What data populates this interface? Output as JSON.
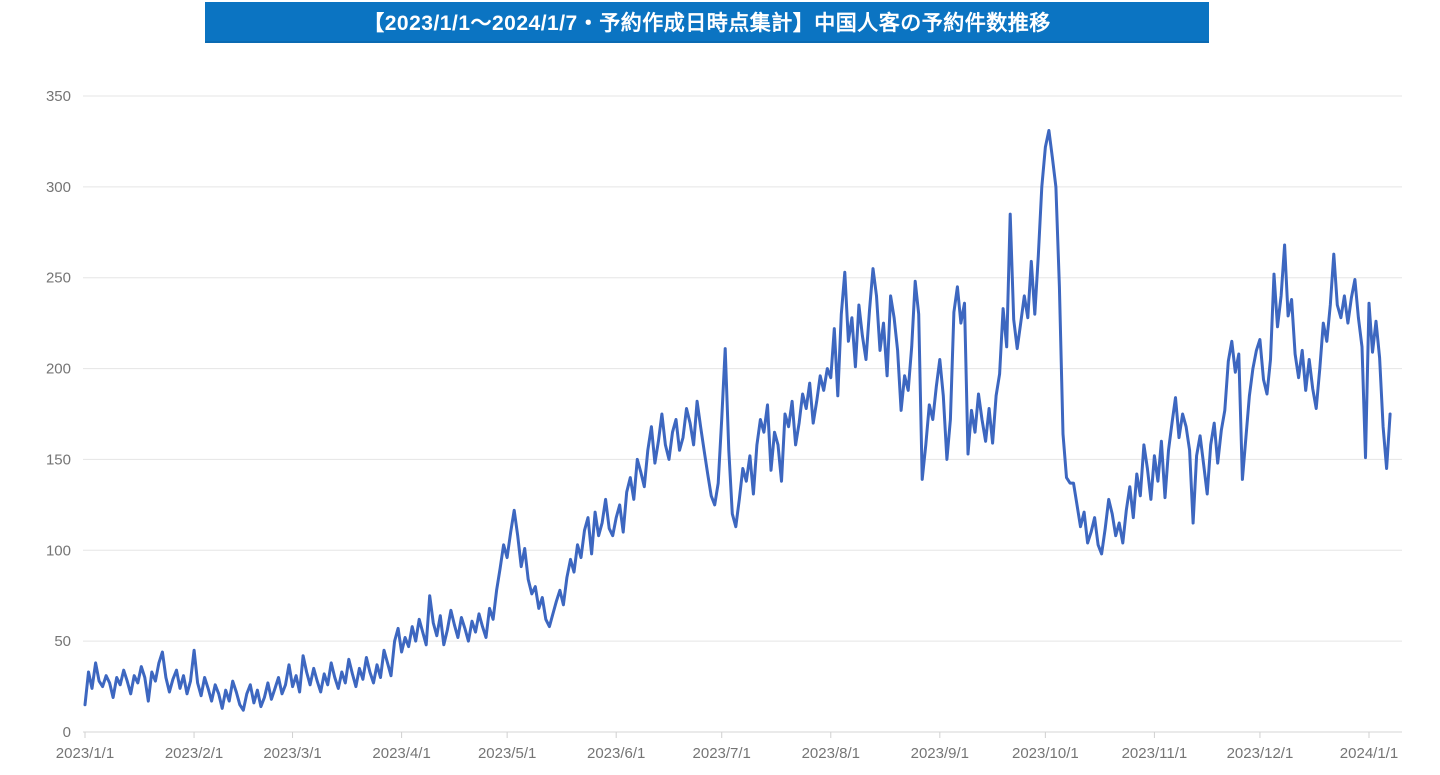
{
  "header": {
    "title": "【2023/1/1～2024/1/7・予約作成日時点集計】中国人客の予約件数推移",
    "background": "#0b74c2",
    "edge_color": "#0b6ab2",
    "text_color": "#ffffff"
  },
  "chart_data": {
    "type": "line",
    "title": "【2023/1/1～2024/1/7・予約作成日時点集計】中国人客の予約件数推移",
    "x_start_date": "2023/1/1",
    "x_end_date": "2024/1/7",
    "x_unit": "day",
    "x_tick_labels": [
      "2023/1/1",
      "2023/2/1",
      "2023/3/1",
      "2023/4/1",
      "2023/5/1",
      "2023/6/1",
      "2023/7/1",
      "2023/8/1",
      "2023/9/1",
      "2023/10/1",
      "2023/11/1",
      "2023/12/1",
      "2024/1/1"
    ],
    "x_tick_day_index": [
      0,
      31,
      59,
      90,
      120,
      151,
      181,
      212,
      243,
      273,
      304,
      334,
      365
    ],
    "y_ticks": [
      0,
      50,
      100,
      150,
      200,
      250,
      300,
      350
    ],
    "ylim": [
      0,
      350
    ],
    "grid": "horizontal",
    "legend": "none",
    "line_color": "#3d67c0",
    "grid_color": "#e5e5e5",
    "axis_line_color": "#d6d6d6",
    "tick_color": "#d0d0d0",
    "axis_label_color": "#757575",
    "values": [
      15,
      33,
      24,
      38,
      28,
      25,
      31,
      27,
      19,
      30,
      26,
      34,
      28,
      21,
      31,
      27,
      36,
      30,
      17,
      33,
      28,
      38,
      44,
      30,
      22,
      29,
      34,
      24,
      31,
      21,
      28,
      45,
      27,
      20,
      30,
      24,
      17,
      26,
      21,
      13,
      23,
      17,
      28,
      22,
      15,
      12,
      21,
      26,
      16,
      23,
      14,
      19,
      27,
      18,
      24,
      30,
      21,
      26,
      37,
      25,
      31,
      22,
      42,
      33,
      26,
      35,
      28,
      22,
      32,
      26,
      38,
      30,
      24,
      33,
      27,
      40,
      32,
      25,
      35,
      29,
      41,
      33,
      27,
      37,
      30,
      45,
      38,
      31,
      50,
      57,
      44,
      52,
      47,
      58,
      50,
      62,
      55,
      48,
      75,
      60,
      53,
      64,
      48,
      56,
      67,
      59,
      52,
      63,
      57,
      50,
      61,
      55,
      65,
      58,
      52,
      68,
      62,
      78,
      90,
      103,
      96,
      110,
      122,
      108,
      91,
      101,
      84,
      76,
      80,
      68,
      74,
      62,
      58,
      65,
      72,
      78,
      70,
      85,
      95,
      88,
      103,
      96,
      111,
      118,
      98,
      121,
      108,
      115,
      128,
      112,
      108,
      118,
      125,
      110,
      132,
      140,
      128,
      150,
      143,
      135,
      155,
      168,
      148,
      160,
      175,
      158,
      150,
      165,
      172,
      155,
      162,
      178,
      170,
      158,
      182,
      168,
      155,
      142,
      130,
      125,
      137,
      172,
      211,
      155,
      120,
      113,
      128,
      145,
      138,
      152,
      131,
      158,
      172,
      165,
      180,
      144,
      165,
      158,
      138,
      175,
      168,
      182,
      158,
      170,
      186,
      178,
      192,
      170,
      182,
      196,
      188,
      200,
      195,
      222,
      185,
      230,
      253,
      215,
      228,
      201,
      235,
      218,
      205,
      232,
      255,
      240,
      210,
      225,
      196,
      240,
      228,
      210,
      177,
      196,
      188,
      212,
      248,
      230,
      139,
      158,
      180,
      172,
      190,
      205,
      185,
      150,
      172,
      231,
      245,
      225,
      236,
      153,
      177,
      165,
      186,
      172,
      160,
      178,
      159,
      185,
      197,
      233,
      212,
      285,
      227,
      211,
      225,
      240,
      228,
      259,
      230,
      262,
      300,
      322,
      331,
      316,
      300,
      245,
      164,
      140,
      137,
      137,
      125,
      113,
      121,
      104,
      110,
      118,
      103,
      98,
      112,
      128,
      120,
      108,
      115,
      104,
      122,
      135,
      118,
      142,
      130,
      158,
      145,
      128,
      152,
      138,
      160,
      129,
      155,
      170,
      184,
      162,
      175,
      168,
      155,
      115,
      152,
      163,
      147,
      131,
      158,
      170,
      148,
      166,
      177,
      204,
      215,
      198,
      208,
      139,
      162,
      185,
      200,
      210,
      216,
      194,
      186,
      205,
      252,
      223,
      240,
      268,
      229,
      238,
      208,
      195,
      210,
      188,
      205,
      189,
      178,
      200,
      225,
      215,
      235,
      263,
      235,
      228,
      240,
      225,
      239,
      249,
      228,
      212,
      151,
      236,
      209,
      226,
      206,
      168,
      145,
      175
    ]
  }
}
